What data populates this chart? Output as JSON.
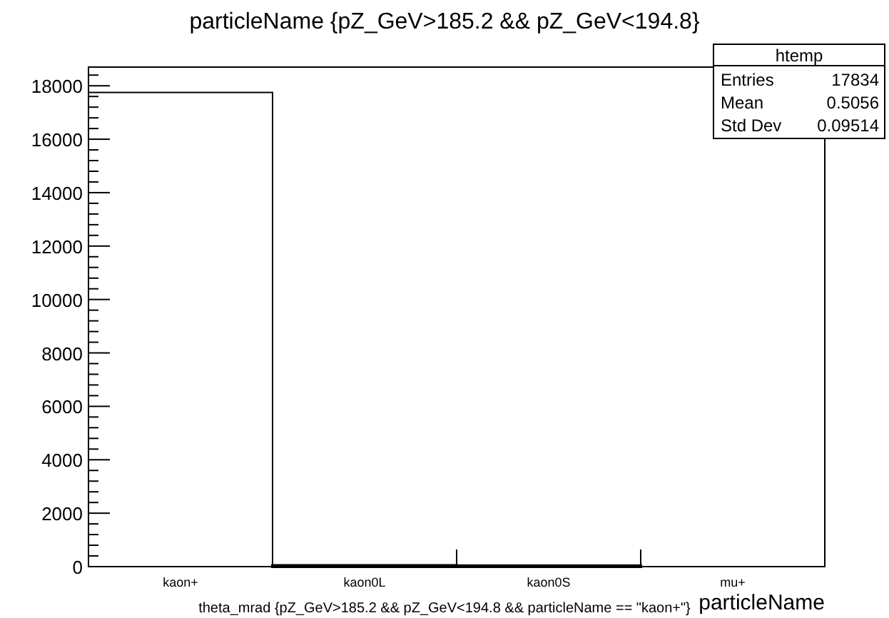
{
  "chart_data": {
    "type": "bar",
    "title": "particleName {pZ_GeV>185.2 && pZ_GeV<194.8}",
    "xlabel": "particleName",
    "categories": [
      "kaon+",
      "kaon0L",
      "kaon0S",
      "mu+"
    ],
    "values": [
      17750,
      40,
      30,
      0
    ],
    "color": "#000000",
    "ylim": [
      0,
      18700
    ],
    "yticks": [
      0,
      {
        "value": 400,
        "label": null
      },
      {
        "value": 800,
        "label": null
      },
      {
        "value": 1200,
        "label": null
      },
      {
        "value": 1600,
        "label": null
      },
      2000,
      {
        "value": 2400,
        "label": null
      },
      {
        "value": 2800,
        "label": null
      },
      {
        "value": 3200,
        "label": null
      },
      {
        "value": 3600,
        "label": null
      },
      4000,
      {
        "value": 4400,
        "label": null
      },
      {
        "value": 4800,
        "label": null
      },
      {
        "value": 5200,
        "label": null
      },
      {
        "value": 5600,
        "label": null
      },
      6000,
      {
        "value": 6400,
        "label": null
      },
      {
        "value": 6800,
        "label": null
      },
      {
        "value": 7200,
        "label": null
      },
      {
        "value": 7600,
        "label": null
      },
      8000,
      {
        "value": 8400,
        "label": null
      },
      {
        "value": 8800,
        "label": null
      },
      {
        "value": 9200,
        "label": null
      },
      {
        "value": 9600,
        "label": null
      },
      10000,
      {
        "value": 10400,
        "label": null
      },
      {
        "value": 10800,
        "label": null
      },
      {
        "value": 11200,
        "label": null
      },
      {
        "value": 11600,
        "label": null
      },
      12000,
      {
        "value": 12400,
        "label": null
      },
      {
        "value": 12800,
        "label": null
      },
      {
        "value": 13200,
        "label": null
      },
      {
        "value": 13600,
        "label": null
      },
      14000,
      {
        "value": 14400,
        "label": null
      },
      {
        "value": 14800,
        "label": null
      },
      {
        "value": 15200,
        "label": null
      },
      {
        "value": 15600,
        "label": null
      },
      16000,
      {
        "value": 16400,
        "label": null
      },
      {
        "value": 16800,
        "label": null
      },
      {
        "value": 17200,
        "label": null
      },
      {
        "value": 17600,
        "label": null
      },
      18000,
      {
        "value": 18400,
        "label": null
      }
    ],
    "legend_title": "htemp",
    "annotations": [
      "Entries",
      "17834",
      "Mean",
      "0.5056",
      "Std Dev",
      "0.09514",
      "theta_mrad {pZ_GeV>185.2 && pZ_GeV<194.8 && particleName == \"kaon+\"}"
    ]
  }
}
